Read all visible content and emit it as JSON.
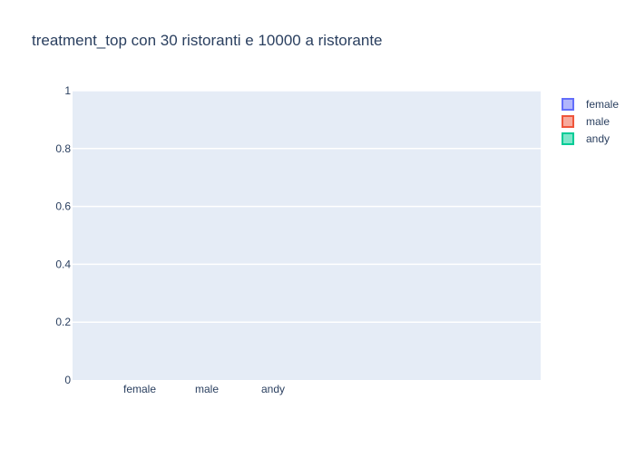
{
  "chart_data": {
    "type": "bar",
    "title": "treatment_top con 30 ristoranti e 10000 a ristorante",
    "xlabel": "",
    "ylabel": "",
    "categories": [
      "female",
      "male",
      "andy"
    ],
    "series": [
      {
        "name": "female",
        "values": [
          0,
          0,
          0
        ],
        "color": "#636efa"
      },
      {
        "name": "male",
        "values": [
          0,
          0,
          0
        ],
        "color": "#ef553b"
      },
      {
        "name": "andy",
        "values": [
          0,
          0,
          0
        ],
        "color": "#00cc96"
      }
    ],
    "ylim": [
      0,
      1
    ],
    "yticks": [
      0,
      0.2,
      0.4,
      0.6,
      0.8,
      1
    ],
    "ytick_labels": [
      "0",
      "0.2",
      "0.4",
      "0.6",
      "0.8",
      "1"
    ],
    "grid": true,
    "legend_position": "right",
    "colors": {
      "plot_background": "#e5ecf6",
      "grid": "#ffffff",
      "text": "#2a3f5f"
    }
  }
}
